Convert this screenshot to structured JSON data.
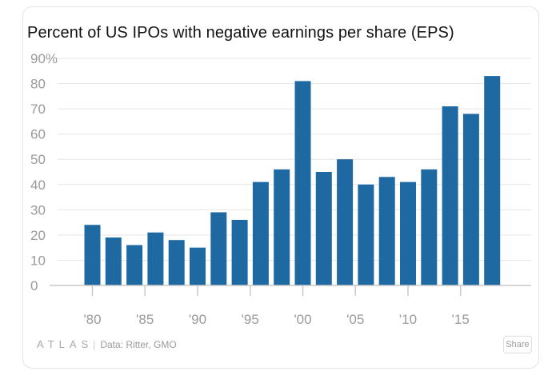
{
  "source": {
    "logo": "ATLAS",
    "text": "Data: Ritter, GMO"
  },
  "share_label": "Share",
  "colors": {
    "bar": "#1f69a3",
    "grid": "#e6e6e6",
    "axis": "#c8c8c8",
    "tick": "#9a9a9a"
  },
  "chart_data": {
    "type": "bar",
    "title": "Percent of US IPOs with negative earnings per share (EPS)",
    "xlabel": "",
    "ylabel": "",
    "ylim": [
      0,
      90
    ],
    "yticks": [
      0,
      10,
      20,
      30,
      40,
      50,
      60,
      70,
      80,
      90
    ],
    "ytick_labels": [
      "0",
      "10",
      "20",
      "30",
      "40",
      "50",
      "60",
      "70",
      "80",
      "90%"
    ],
    "categories": [
      "1980",
      "1982",
      "1984",
      "1986",
      "1988",
      "1990",
      "1992",
      "1994",
      "1996",
      "1998",
      "2000",
      "2002",
      "2004",
      "2006",
      "2008",
      "2010",
      "2012",
      "2014",
      "2016",
      "2018"
    ],
    "values": [
      24,
      19,
      16,
      21,
      18,
      15,
      29,
      26,
      41,
      46,
      81,
      45,
      50,
      40,
      43,
      41,
      46,
      71,
      68,
      83
    ],
    "xtick_labels": [
      {
        "year": 1980,
        "label": "'80"
      },
      {
        "year": 1985,
        "label": "'85"
      },
      {
        "year": 1990,
        "label": "'90"
      },
      {
        "year": 1995,
        "label": "'95"
      },
      {
        "year": 2000,
        "label": "'00"
      },
      {
        "year": 2005,
        "label": "'05"
      },
      {
        "year": 2010,
        "label": "'10"
      },
      {
        "year": 2015,
        "label": "'15"
      }
    ],
    "grid": true,
    "legend": "none"
  }
}
